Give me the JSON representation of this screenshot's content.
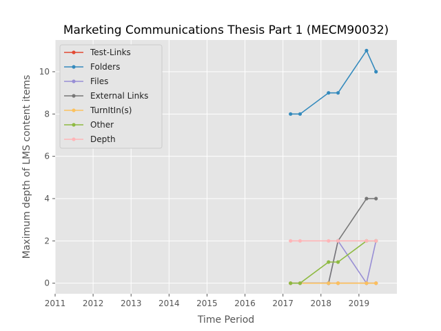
{
  "chart_data": {
    "type": "line",
    "title": "Marketing Communications Thesis Part 1 (MECM90032)",
    "xlabel": "Time Period",
    "ylabel": "Maximum depth of LMS content items",
    "xlim": [
      2011,
      2020
    ],
    "ylim": [
      -0.5,
      11.5
    ],
    "xticks": [
      "2011",
      "2012",
      "2013",
      "2014",
      "2015",
      "2016",
      "2017",
      "2018",
      "2019"
    ],
    "yticks": [
      "0",
      "2",
      "4",
      "6",
      "8",
      "10"
    ],
    "x": [
      2017.2,
      2017.45,
      2018.2,
      2018.45,
      2019.2,
      2019.45
    ],
    "grid": true,
    "legend_position": "top-left",
    "series": [
      {
        "name": "Test-Links",
        "color": "#e24a33",
        "values": [
          0,
          0,
          0,
          0,
          0,
          0
        ]
      },
      {
        "name": "Folders",
        "color": "#348abd",
        "values": [
          8,
          8,
          9,
          9,
          11,
          10
        ]
      },
      {
        "name": "Files",
        "color": "#988ed5",
        "values": [
          0,
          0,
          0,
          2,
          0,
          2
        ]
      },
      {
        "name": "External Links",
        "color": "#777777",
        "values": [
          0,
          0,
          0,
          2,
          4,
          4
        ]
      },
      {
        "name": "TurnItIn(s)",
        "color": "#fbc15e",
        "values": [
          0,
          0,
          0,
          0,
          0,
          0
        ]
      },
      {
        "name": "Other",
        "color": "#8eba42",
        "values": [
          0,
          0,
          1,
          1,
          2,
          2
        ]
      },
      {
        "name": "Depth",
        "color": "#ffb5b8",
        "values": [
          2,
          2,
          2,
          2,
          2,
          2
        ]
      }
    ]
  }
}
